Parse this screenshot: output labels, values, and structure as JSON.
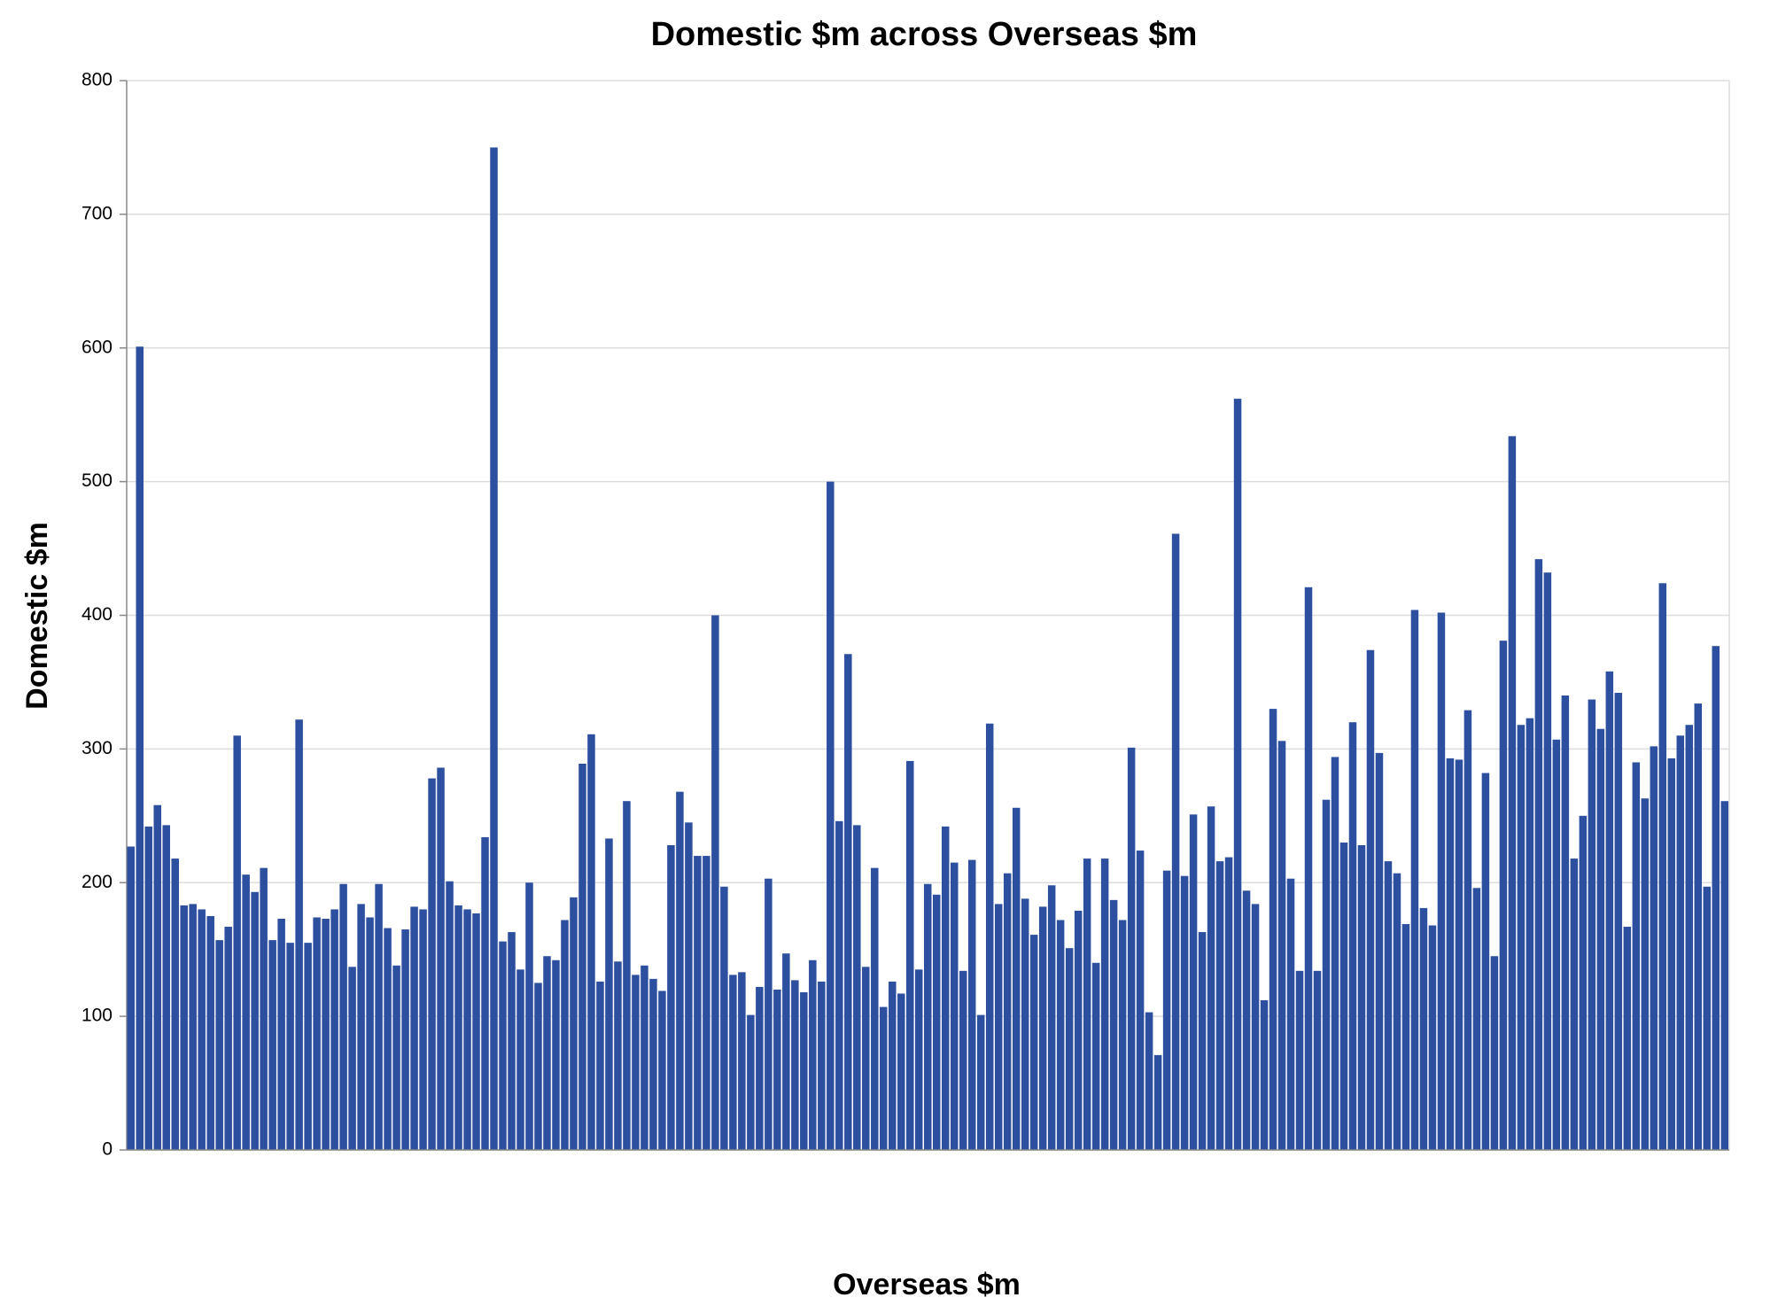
{
  "chart_data": {
    "type": "bar",
    "title": "Domestic $m across Overseas $m",
    "x_label": "Overseas $m",
    "y_label": "Domestic $m",
    "categories": [
      null,
      null,
      null,
      null,
      null,
      null,
      null,
      null,
      null,
      null,
      null,
      null,
      null,
      null,
      null,
      null,
      null,
      null,
      null,
      null,
      null,
      null,
      null,
      null,
      null,
      null,
      null,
      null,
      null,
      null,
      null,
      null,
      null,
      null,
      null,
      null,
      null,
      null,
      null,
      null,
      null,
      null,
      null,
      null,
      null,
      null,
      null,
      null,
      null,
      null,
      null,
      null,
      null,
      null,
      null,
      null,
      null,
      null,
      null,
      null,
      null,
      null,
      null,
      null,
      null,
      null,
      null,
      null,
      null,
      null,
      null,
      null,
      null,
      null,
      null,
      null,
      null,
      null,
      null,
      null,
      null,
      null,
      null,
      null,
      null,
      null,
      null,
      null,
      null,
      null,
      null,
      null,
      null,
      null,
      null,
      null,
      null,
      null,
      null,
      null,
      null,
      null,
      null,
      null,
      null,
      null,
      null,
      null,
      null,
      null,
      null,
      null,
      null,
      null,
      null,
      null,
      null,
      null,
      null,
      null,
      null,
      null,
      null,
      null,
      null,
      null,
      null,
      null,
      null,
      null,
      null,
      null,
      null,
      null,
      null,
      null,
      null,
      null,
      null,
      null,
      null,
      null,
      null,
      null,
      null,
      null,
      null,
      null,
      null,
      null,
      null,
      null,
      null,
      null,
      null,
      null,
      null,
      null,
      null,
      null,
      null,
      null,
      null,
      null,
      null,
      null,
      null,
      null,
      null,
      null,
      null,
      null,
      null,
      null,
      null,
      null,
      null,
      null,
      null,
      null,
      null
    ],
    "values": [
      227,
      601,
      242,
      258,
      243,
      218,
      183,
      184,
      180,
      175,
      157,
      167,
      310,
      206,
      193,
      211,
      157,
      173,
      155,
      322,
      155,
      174,
      173,
      180,
      199,
      137,
      184,
      174,
      199,
      166,
      138,
      165,
      182,
      180,
      278,
      286,
      201,
      183,
      180,
      177,
      234,
      750,
      156,
      163,
      135,
      200,
      125,
      145,
      142,
      172,
      189,
      289,
      311,
      126,
      233,
      141,
      261,
      131,
      138,
      128,
      119,
      228,
      268,
      245,
      220,
      220,
      400,
      197,
      131,
      133,
      101,
      122,
      203,
      120,
      147,
      127,
      118,
      142,
      126,
      500,
      246,
      371,
      243,
      137,
      211,
      107,
      126,
      117,
      291,
      135,
      199,
      191,
      242,
      215,
      134,
      217,
      101,
      319,
      184,
      207,
      256,
      188,
      161,
      182,
      198,
      172,
      151,
      179,
      218,
      140,
      218,
      187,
      172,
      301,
      224,
      103,
      71,
      209,
      461,
      205,
      251,
      163,
      257,
      216,
      219,
      562,
      194,
      184,
      112,
      330,
      306,
      203,
      134,
      421,
      134,
      262,
      294,
      230,
      320,
      228,
      374,
      297,
      216,
      207,
      169,
      404,
      181,
      168,
      402,
      293,
      292,
      329,
      196,
      282,
      145,
      381,
      534,
      318,
      323,
      442,
      432,
      307,
      340,
      218,
      250,
      337,
      315,
      358,
      342,
      167,
      290,
      263,
      302,
      424,
      293,
      310,
      318,
      334,
      197,
      377,
      261
    ],
    "color": "#2c4fa0",
    "ylim": [
      0,
      800
    ],
    "yticks": [
      0,
      100,
      200,
      300,
      400,
      500,
      600,
      700,
      800
    ],
    "grid": true
  }
}
